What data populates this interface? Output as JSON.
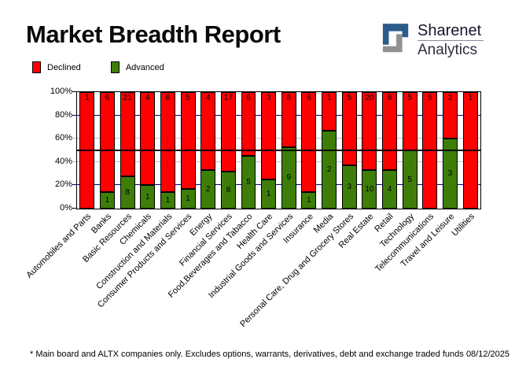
{
  "header": {
    "title": "Market Breadth Report"
  },
  "logo": {
    "brand_top": "Sharenet",
    "brand_bottom": "Analytics",
    "glyph_navy": "#2B5C8A",
    "glyph_gray": "#8F9193"
  },
  "legend": {
    "declined_label": "Declined",
    "advanced_label": "Advanced"
  },
  "colors": {
    "declined": "#FF0000",
    "advanced": "#3E7E08",
    "grid_major": "#000080",
    "grid_minor": "#C0C0C0",
    "midline": "#000000"
  },
  "axis": {
    "y_ticks": [
      "100%",
      "80%",
      "60%",
      "40%",
      "20%",
      "0%"
    ]
  },
  "chart_data": {
    "type": "bar",
    "stacked": true,
    "normalized": "percent",
    "title": "Market Breadth Report",
    "ylim": [
      0,
      100
    ],
    "reference_line_pct": 50,
    "legend_position": "top-left",
    "categories": [
      "Automobiles and Parts",
      "Banks",
      "Basic Resources",
      "Chemicals",
      "Construction and Materials",
      "Consumer Products and Services",
      "Energy",
      "Financial Services",
      "Food,Beverages and Tabacco",
      "Health Care",
      "Industrial Goods and Services",
      "Insurance",
      "Media",
      "Personal Care, Drug and Grocery Stores",
      "Real Estate",
      "Retail",
      "Technology",
      "Telecommunications",
      "Travel and Leisure",
      "Utilities"
    ],
    "series": [
      {
        "name": "Declined",
        "color": "#FF0000",
        "values": [
          1,
          6,
          21,
          4,
          6,
          5,
          4,
          17,
          6,
          3,
          8,
          6,
          1,
          5,
          20,
          8,
          5,
          5,
          2,
          1
        ]
      },
      {
        "name": "Advanced",
        "color": "#3E7E08",
        "values": [
          0,
          1,
          8,
          1,
          1,
          1,
          2,
          8,
          5,
          1,
          9,
          1,
          2,
          3,
          10,
          4,
          5,
          0,
          3,
          0
        ]
      }
    ]
  },
  "footer": {
    "note": "* Main board and ALTX companies only. Excludes options, warrants, derivatives, debt and exchange traded funds",
    "date": "08/12/2025"
  }
}
